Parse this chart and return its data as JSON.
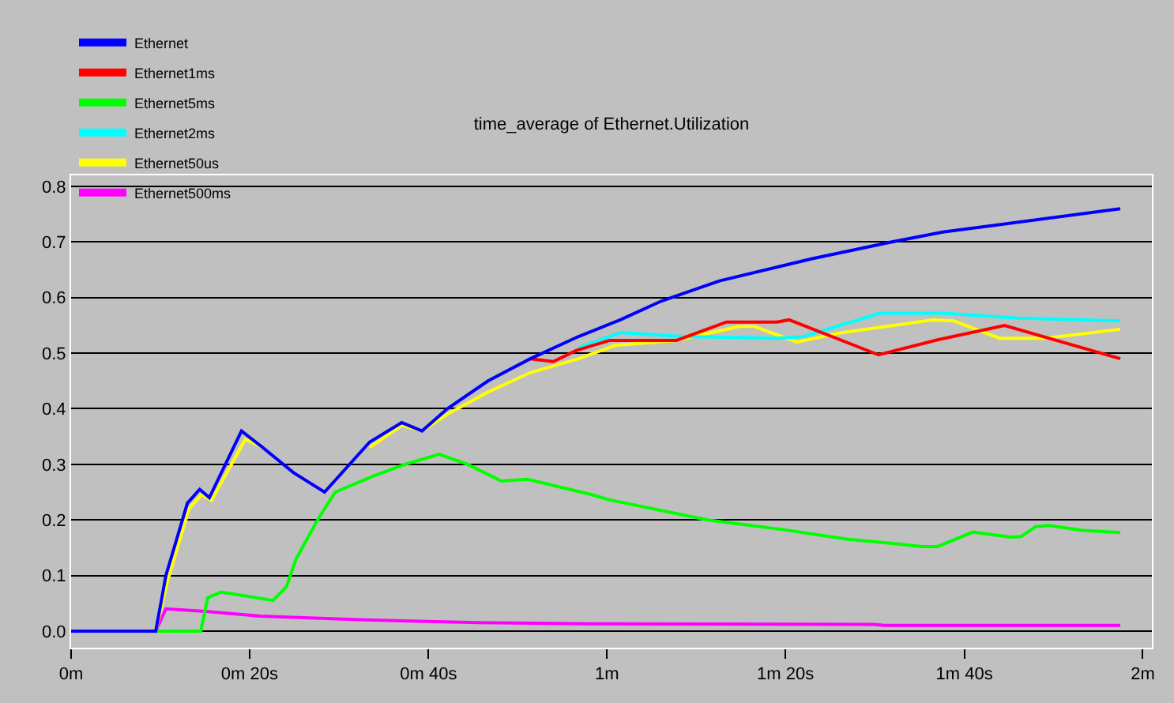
{
  "chart_data": {
    "type": "line",
    "title": "time_average of Ethernet.Utilization",
    "xlim": [
      0,
      2.017
    ],
    "ylim": [
      -0.03,
      0.82
    ],
    "xticks": [
      {
        "value": 0,
        "label": "0m"
      },
      {
        "value": 0.333,
        "label": "0m 20s"
      },
      {
        "value": 0.667,
        "label": "0m 40s"
      },
      {
        "value": 1,
        "label": "1m"
      },
      {
        "value": 1.333,
        "label": "1m 20s"
      },
      {
        "value": 1.667,
        "label": "1m 40s"
      },
      {
        "value": 2,
        "label": "2m"
      }
    ],
    "yticks": [
      {
        "value": 0,
        "label": "0.0"
      },
      {
        "value": 0.1,
        "label": "0.1"
      },
      {
        "value": 0.2,
        "label": "0.2"
      },
      {
        "value": 0.3,
        "label": "0.3"
      },
      {
        "value": 0.4,
        "label": "0.4"
      },
      {
        "value": 0.5,
        "label": "0.5"
      },
      {
        "value": 0.6,
        "label": "0.6"
      },
      {
        "value": 0.7,
        "label": "0.7"
      },
      {
        "value": 0.8,
        "label": "0.8"
      }
    ],
    "grid": "y",
    "legend": "top left",
    "marker": "none",
    "line_style": "solid",
    "series": [
      {
        "name": "Ethernet",
        "color": "#0000ff",
        "x": [
          0,
          0.158,
          0.177,
          0.217,
          0.24,
          0.258,
          0.318,
          0.358,
          0.415,
          0.473,
          0.557,
          0.617,
          0.655,
          0.702,
          0.778,
          0.857,
          0.947,
          1.025,
          1.102,
          1.21,
          1.383,
          1.53,
          1.627,
          1.958
        ],
        "values": [
          0,
          0,
          0.1,
          0.23,
          0.255,
          0.24,
          0.36,
          0.33,
          0.285,
          0.25,
          0.34,
          0.375,
          0.36,
          0.4,
          0.45,
          0.49,
          0.53,
          0.56,
          0.594,
          0.63,
          0.67,
          0.7,
          0.718,
          0.76
        ]
      },
      {
        "name": "Ethernet1ms",
        "color": "#ff0000",
        "x": [
          0.857,
          0.9,
          0.943,
          1.005,
          1.13,
          1.223,
          1.317,
          1.34,
          1.507,
          1.617,
          1.742,
          1.958
        ],
        "values": [
          0.49,
          0.485,
          0.505,
          0.523,
          0.523,
          0.556,
          0.556,
          0.56,
          0.497,
          0.524,
          0.55,
          0.49
        ]
      },
      {
        "name": "Ethernet5ms",
        "color": "#00ff00",
        "x": [
          0,
          0.242,
          0.255,
          0.28,
          0.377,
          0.402,
          0.42,
          0.46,
          0.493,
          0.567,
          0.623,
          0.687,
          0.74,
          0.803,
          0.852,
          0.973,
          1.005,
          1.188,
          1.333,
          1.45,
          1.53,
          1.588,
          1.617,
          1.683,
          1.753,
          1.773,
          1.8,
          1.825,
          1.888,
          1.958
        ],
        "values": [
          0,
          0,
          0.06,
          0.07,
          0.055,
          0.08,
          0.13,
          0.2,
          0.25,
          0.28,
          0.3,
          0.318,
          0.3,
          0.27,
          0.273,
          0.245,
          0.236,
          0.2,
          0.182,
          0.165,
          0.158,
          0.152,
          0.152,
          0.178,
          0.169,
          0.17,
          0.188,
          0.19,
          0.181,
          0.177
        ]
      },
      {
        "name": "Ethernet2ms",
        "color": "#00ffff",
        "x": [
          0.947,
          1.025,
          1.142,
          1.317,
          1.367,
          1.51,
          1.627,
          1.767,
          1.958
        ],
        "values": [
          0.51,
          0.537,
          0.53,
          0.527,
          0.53,
          0.572,
          0.572,
          0.563,
          0.558
        ]
      },
      {
        "name": "Ethernet50us",
        "color": "#ffff00",
        "x": [
          0,
          0.158,
          0.18,
          0.22,
          0.243,
          0.262,
          0.325,
          0.358,
          0.415,
          0.473,
          0.557,
          0.617,
          0.655,
          0.702,
          0.778,
          0.857,
          0.947,
          1.015,
          1.13,
          1.247,
          1.275,
          1.355,
          1.433,
          1.608,
          1.647,
          1.733,
          1.817,
          1.958
        ],
        "values": [
          0,
          0,
          0.09,
          0.22,
          0.245,
          0.235,
          0.345,
          0.33,
          null,
          null,
          0.33,
          0.37,
          0.36,
          0.39,
          0.43,
          0.465,
          0.49,
          0.514,
          0.523,
          0.548,
          0.548,
          0.52,
          0.536,
          0.56,
          0.558,
          0.527,
          0.527,
          0.543
        ]
      },
      {
        "name": "Ethernet500ms",
        "color": "#ff00ff",
        "x": [
          0,
          0.158,
          0.177,
          0.255,
          0.353,
          0.547,
          0.76,
          0.973,
          1.5,
          1.517,
          1.958
        ],
        "values": [
          0,
          0,
          0.04,
          0.035,
          0.027,
          0.02,
          0.015,
          0.013,
          0.012,
          0.01,
          0.01
        ]
      }
    ]
  }
}
